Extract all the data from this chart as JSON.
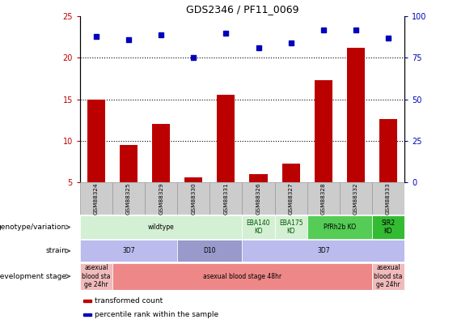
{
  "title": "GDS2346 / PF11_0069",
  "samples": [
    "GSM88324",
    "GSM88325",
    "GSM88329",
    "GSM88330",
    "GSM88331",
    "GSM88326",
    "GSM88327",
    "GSM88328",
    "GSM88332",
    "GSM88333"
  ],
  "bar_values": [
    15.0,
    9.5,
    12.0,
    5.6,
    15.5,
    6.0,
    7.2,
    17.3,
    21.2,
    12.6
  ],
  "dot_values_pct": [
    88,
    86,
    89,
    75,
    90,
    81,
    84,
    92,
    92,
    87
  ],
  "ylim_left": [
    5,
    25
  ],
  "ylim_right": [
    0,
    100
  ],
  "yticks_left": [
    5,
    10,
    15,
    20,
    25
  ],
  "yticks_right": [
    0,
    25,
    50,
    75,
    100
  ],
  "bar_color": "#bb0000",
  "dot_color": "#0000bb",
  "genotype_rows": [
    {
      "label": "wildtype",
      "start": 0,
      "end": 4,
      "color": "#d4f0d4",
      "text_color": "#000000"
    },
    {
      "label": "EBA140\nKO",
      "start": 5,
      "end": 5,
      "color": "#d4f0d4",
      "text_color": "#005500"
    },
    {
      "label": "EBA175\nKO",
      "start": 6,
      "end": 6,
      "color": "#d4f0d4",
      "text_color": "#005500"
    },
    {
      "label": "PfRh2b KO",
      "start": 7,
      "end": 8,
      "color": "#55cc55",
      "text_color": "#000000"
    },
    {
      "label": "SIR2\nKO",
      "start": 9,
      "end": 9,
      "color": "#33bb33",
      "text_color": "#000000"
    }
  ],
  "strain_rows": [
    {
      "label": "3D7",
      "start": 0,
      "end": 2,
      "color": "#bbbbee",
      "text_color": "#000000"
    },
    {
      "label": "D10",
      "start": 3,
      "end": 4,
      "color": "#9999cc",
      "text_color": "#000000"
    },
    {
      "label": "3D7",
      "start": 5,
      "end": 9,
      "color": "#bbbbee",
      "text_color": "#000000"
    }
  ],
  "dev_rows": [
    {
      "label": "asexual\nblood sta\nge 24hr",
      "start": 0,
      "end": 0,
      "color": "#f0bbbb",
      "text_color": "#000000"
    },
    {
      "label": "asexual blood stage 48hr",
      "start": 1,
      "end": 8,
      "color": "#ee8888",
      "text_color": "#000000"
    },
    {
      "label": "asexual\nblood sta\nge 24hr",
      "start": 9,
      "end": 9,
      "color": "#f0bbbb",
      "text_color": "#000000"
    }
  ],
  "legend_items": [
    {
      "color": "#bb0000",
      "label": "transformed count"
    },
    {
      "color": "#0000bb",
      "label": "percentile rank within the sample"
    }
  ],
  "sample_bg_color": "#cccccc",
  "sample_border_color": "#999999",
  "grid_dotted_color": "#000000"
}
